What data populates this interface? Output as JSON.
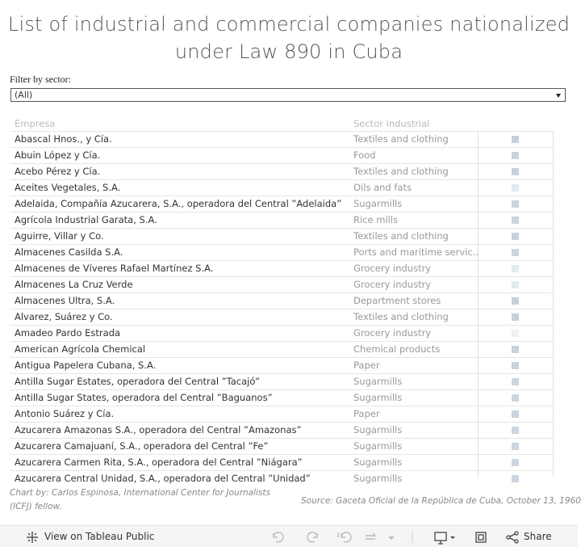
{
  "header": {
    "title_line1": "List of industrial and commercial companies nationalized",
    "title_line2": "under Law 890 in Cuba"
  },
  "filter": {
    "label": "Filter by sector:",
    "value": "(All)"
  },
  "table": {
    "columns": [
      "Empresa",
      "Sector industrial"
    ],
    "rows": [
      [
        "Abascal Hnos., y Cía.",
        "Textiles and clothing"
      ],
      [
        "Abuin López y Cía.",
        "Food"
      ],
      [
        "Acebo Pérez y Cía.",
        "Textiles and clothing"
      ],
      [
        "Aceites Vegetales, S.A.",
        "Oils and fats"
      ],
      [
        "Adelaida, Compañía Azucarera, S.A., operadora del Central ”Adelaida”",
        "Sugarmills"
      ],
      [
        "Agrícola Industrial Garata, S.A.",
        "Rice mills"
      ],
      [
        "Aguirre, Villar y Co.",
        "Textiles and clothing"
      ],
      [
        "Almacenes Casilda S.A.",
        "Ports and maritime servic.."
      ],
      [
        "Almacenes de Víveres Rafael Martínez S.A.",
        "Grocery industry"
      ],
      [
        "Almacenes La Cruz Verde",
        "Grocery industry"
      ],
      [
        "Almacenes Ultra, S.A.",
        "Department stores"
      ],
      [
        "Alvarez, Suárez y Co.",
        "Textiles and clothing"
      ],
      [
        "Amadeo Pardo Estrada",
        "Grocery industry"
      ],
      [
        "American Agrícola Chemical",
        "Chemical products"
      ],
      [
        "Antigua Papelera Cubana, S.A.",
        "Paper"
      ],
      [
        "Antilla Sugar Estates, operadora del Central ”Tacajó”",
        "Sugarmills"
      ],
      [
        "Antilla Sugar States, operadora del Central ”Baguanos”",
        "Sugarmills"
      ],
      [
        "Antonio Suárez y Cía.",
        "Paper"
      ],
      [
        "Azucarera Amazonas S.A., operadora del Central ”Amazonas”",
        "Sugarmills"
      ],
      [
        "Azucarera Camajuaní, S.A., operadora del Central ”Fe”",
        "Sugarmills"
      ],
      [
        "Azucarera Carmen Rita, S.A., operadora del Central ”Niágara”",
        "Sugarmills"
      ],
      [
        "Azucarera Central Unidad, S.A., operadora del Central ”Unidad”",
        "Sugarmills"
      ]
    ],
    "marker_colors": [
      "#c6d0dc",
      "#c9d3de",
      "#c6d0dc",
      "#e4eaef",
      "#ccd5e0",
      "#ccd5e0",
      "#c6d0dc",
      "#ccd5e0",
      "#e3e9ed",
      "#e3e9ed",
      "#c6d0dc",
      "#c6d0dc",
      "#edf1f3",
      "#c9d3de",
      "#c9d3de",
      "#ccd5e0",
      "#ccd5e0",
      "#c9d3de",
      "#ccd5e0",
      "#ccd5e0",
      "#ccd5e0",
      "#ccd5e0"
    ]
  },
  "footer": {
    "credit_line1": "Chart by: Carlos Espinosa, International Center for Journalists",
    "credit_line2": "(ICFJ) fellow.",
    "source": "Source: Gaceta Oficial de la República de Cuba, October 13, 1960"
  },
  "toolbar": {
    "view_link": "View on Tableau Public",
    "share": "Share"
  }
}
